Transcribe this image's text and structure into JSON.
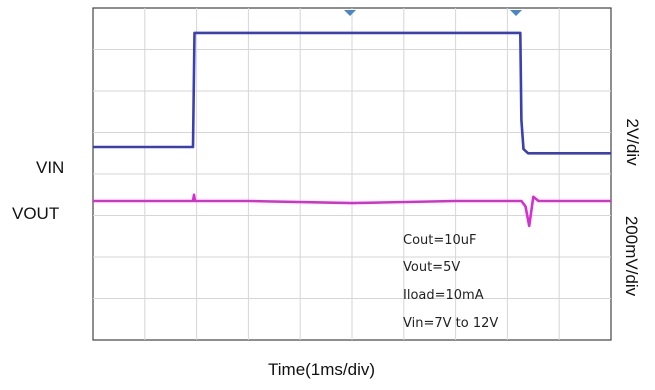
{
  "chart_data": {
    "type": "line",
    "title": "",
    "xlabel": "Time(1ms/div)",
    "xlim": [
      0,
      10
    ],
    "x_divisions": 10,
    "y_divisions": 8,
    "grid": true,
    "channel_labels": [
      "VIN",
      "VOUT"
    ],
    "scale_labels": [
      "2V/div",
      "200mV/div"
    ],
    "series": [
      {
        "name": "VIN",
        "color": "#3a3fb5",
        "values_divisions": [
          [
            0,
            4.65
          ],
          [
            1.93,
            4.65
          ],
          [
            1.96,
            7.4
          ],
          [
            8.25,
            7.4
          ],
          [
            8.27,
            5.3
          ],
          [
            8.31,
            4.6
          ],
          [
            8.4,
            4.5
          ],
          [
            10,
            4.5
          ]
        ]
      },
      {
        "name": "VOUT",
        "color": "#d62fd0",
        "values_divisions": [
          [
            0,
            3.35
          ],
          [
            1.93,
            3.35
          ],
          [
            1.95,
            3.5
          ],
          [
            1.97,
            3.35
          ],
          [
            3.0,
            3.35
          ],
          [
            5.0,
            3.3
          ],
          [
            7.0,
            3.35
          ],
          [
            8.27,
            3.35
          ],
          [
            8.35,
            3.22
          ],
          [
            8.42,
            2.75
          ],
          [
            8.5,
            3.45
          ],
          [
            8.6,
            3.35
          ],
          [
            10,
            3.35
          ]
        ]
      }
    ],
    "annotations": [
      "Cout=10uF",
      "Vout=5V",
      "Iload=10mA",
      "Vin=7V to 12V"
    ]
  }
}
